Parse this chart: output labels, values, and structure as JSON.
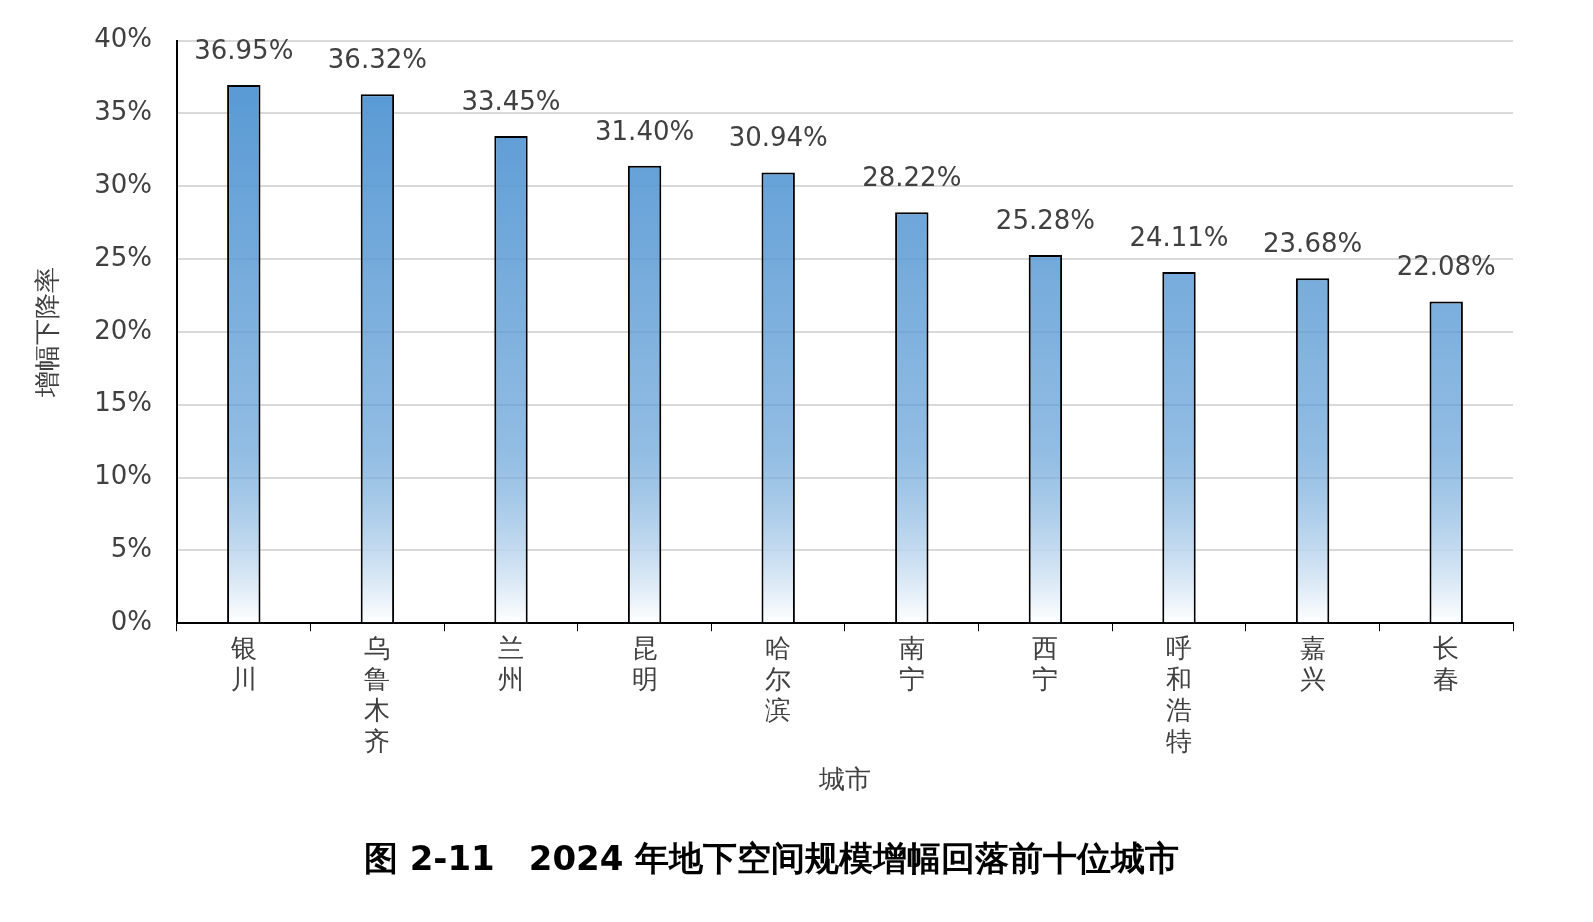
{
  "chart_data": {
    "type": "bar",
    "title": "图 2-11　2024 年地下空间规模增幅回落前十位城市",
    "xlabel": "城市",
    "ylabel": "增幅下降率",
    "categories": [
      "银川",
      "乌鲁木齐",
      "兰州",
      "昆明",
      "哈尔滨",
      "南宁",
      "西宁",
      "呼和浩特",
      "嘉兴",
      "长春"
    ],
    "values": [
      36.95,
      36.32,
      33.45,
      31.4,
      30.94,
      28.22,
      25.28,
      24.11,
      23.68,
      22.08
    ],
    "value_labels": [
      "36.95%",
      "36.32%",
      "33.45%",
      "31.40%",
      "30.94%",
      "28.22%",
      "25.28%",
      "24.11%",
      "23.68%",
      "22.08%"
    ],
    "color": "#5b9bd5",
    "ylim": [
      0,
      40
    ],
    "yticks": [
      {
        "value": 0,
        "label": "0%"
      },
      {
        "value": 5,
        "label": "5%"
      },
      {
        "value": 10,
        "label": "10%"
      },
      {
        "value": 15,
        "label": "15%"
      },
      {
        "value": 20,
        "label": "20%"
      },
      {
        "value": 25,
        "label": "25%"
      },
      {
        "value": 30,
        "label": "30%"
      },
      {
        "value": 35,
        "label": "35%"
      },
      {
        "value": 40,
        "label": "40%"
      }
    ],
    "grid": "y"
  }
}
